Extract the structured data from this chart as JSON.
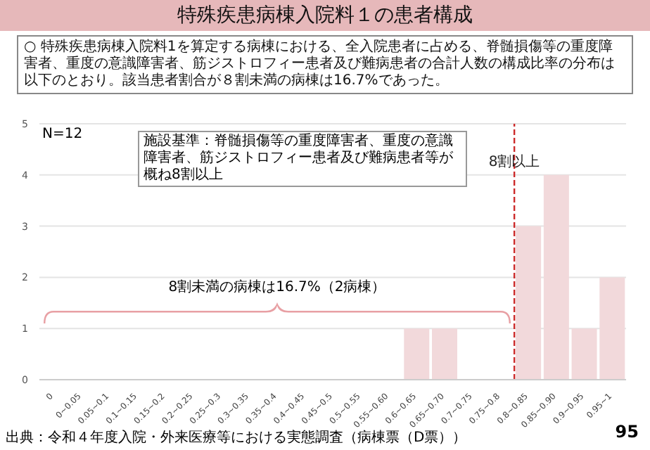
{
  "chart_data": {
    "type": "bar",
    "title": "特殊疾患病棟入院料１の患者構成",
    "subtitle": "○ 特殊疾患病棟入院料1を算定する病棟における、全入院患者に占める、脊髄損傷等の重度障害者、重度の意識障害者、筋ジストロフィー患者及び難病患者の合計人数の構成比率の分布は以下のとおり。該当患者割合が８割未満の病棟は16.7%であった。",
    "categories": [
      "0",
      "0~0.05",
      "0.05~0.1",
      "0.1~0.15",
      "0.15~0.2",
      "0.2~0.25",
      "0.25~0.3",
      "0.3~0.35",
      "0.35~0.4",
      "0.4~0.45",
      "0.45~0.5",
      "0.5~0.55",
      "0.55~0.60",
      "0.6~0.65",
      "0.65~0.70",
      "0.7~0.75",
      "0.75~0.8",
      "0.8~0.85",
      "0.85~0.90",
      "0.9~0.95",
      "0.95~1"
    ],
    "values": [
      0,
      0,
      0,
      0,
      0,
      0,
      0,
      0,
      0,
      0,
      0,
      0,
      0,
      1,
      1,
      0,
      0,
      3,
      4,
      1,
      2
    ],
    "color": "#f2d9db",
    "ylim": [
      0,
      5
    ],
    "yticks": [
      0,
      1,
      2,
      3,
      4,
      5
    ],
    "grid": "y",
    "ref_lines": [
      {
        "axis": "x",
        "value": "0.8~0.85",
        "label": "8割以上",
        "color": "#cc2a2a",
        "line_style": "dashed"
      }
    ],
    "annotations": [
      "N=12",
      "施設基準：脊髄損傷等の重度障害者、重度の意識障害者、筋ジストロフィー患者及び難病患者等が概ね8割以上",
      "8割未満の病棟は16.7%（2病棟）",
      "出典：令和４年度入院・外来医療等における実態調査（病棟票（D票））",
      "95"
    ]
  }
}
